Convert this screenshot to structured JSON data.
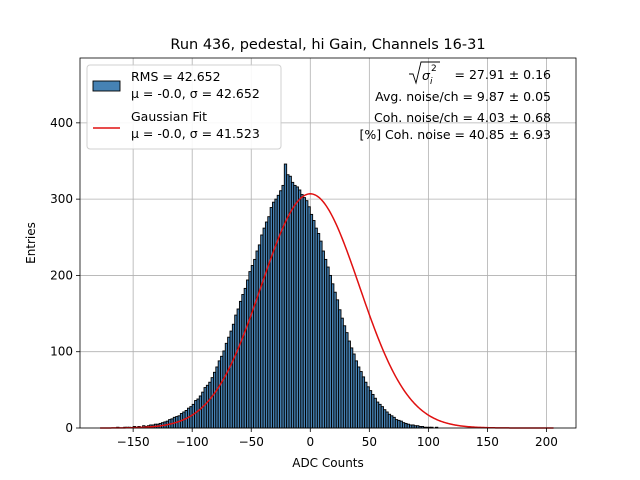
{
  "chart_data": {
    "type": "bar",
    "title": "Run 436, pedestal, hi Gain, Channels 16-31",
    "xlabel": "ADC Counts",
    "ylabel": "Entries",
    "xlim": [
      -195,
      225
    ],
    "ylim": [
      0,
      485
    ],
    "x_ticks": [
      -150,
      -100,
      -50,
      0,
      50,
      100,
      150,
      200
    ],
    "x_tick_labels": [
      "−150",
      "−100",
      "−50",
      "0",
      "50",
      "100",
      "150",
      "200"
    ],
    "y_ticks": [
      0,
      100,
      200,
      300,
      400
    ],
    "y_tick_labels": [
      "0",
      "100",
      "200",
      "300",
      "400"
    ],
    "grid": true,
    "legend_position": "top-left",
    "histogram": {
      "name": "RMS = 42.652",
      "subtitle": "μ = -0.0, σ = 42.652",
      "color": "#4682b4",
      "bin_start": -178,
      "bin_width": 2,
      "counts": [
        0,
        0,
        0,
        0,
        0,
        0,
        0,
        1,
        0,
        0,
        1,
        1,
        1,
        0,
        2,
        1,
        2,
        1,
        3,
        2,
        3,
        4,
        4,
        5,
        5,
        6,
        7,
        8,
        9,
        11,
        12,
        14,
        15,
        16,
        19,
        21,
        23,
        26,
        28,
        31,
        36,
        38,
        42,
        47,
        53,
        56,
        60,
        66,
        73,
        80,
        88,
        94,
        101,
        111,
        119,
        127,
        136,
        148,
        156,
        166,
        175,
        183,
        194,
        205,
        213,
        221,
        232,
        240,
        253,
        262,
        270,
        277,
        289,
        296,
        300,
        305,
        311,
        318,
        346,
        332,
        330,
        322,
        318,
        316,
        312,
        306,
        302,
        298,
        290,
        280,
        272,
        262,
        255,
        245,
        232,
        221,
        211,
        200,
        189,
        178,
        168,
        155,
        144,
        134,
        125,
        114,
        105,
        97,
        88,
        80,
        74,
        67,
        60,
        54,
        49,
        44,
        39,
        34,
        31,
        28,
        24,
        21,
        18,
        16,
        14,
        11,
        10,
        9,
        7,
        6,
        5,
        4,
        4,
        3,
        3,
        2,
        2,
        1,
        1,
        1,
        1,
        0,
        1,
        0,
        0,
        0,
        0,
        0,
        0,
        0,
        0,
        0,
        0,
        0,
        0,
        0,
        0,
        0,
        0,
        0,
        0,
        0,
        0,
        0,
        0,
        0,
        0,
        0,
        0,
        0,
        0,
        0,
        0,
        0,
        0,
        0,
        0,
        0,
        0,
        0,
        0,
        0,
        0,
        0,
        0,
        0,
        0,
        0,
        0,
        0,
        0,
        0,
        0,
        0
      ]
    },
    "fit": {
      "name": "Gaussian Fit",
      "subtitle": "μ = -0.0, σ = 41.523",
      "color": "#e01010",
      "mu": 0.0,
      "sigma": 41.523,
      "amplitude": 307,
      "x_range": [
        -178,
        206
      ]
    },
    "annotations": {
      "sigma_i_sq": "= 27.91 ± 0.16",
      "avg_noise": "Avg. noise/ch = 9.87 ± 0.05",
      "coh_noise": "Coh. noise/ch = 4.03 ± 0.68",
      "coh_pct": "[%] Coh. noise = 40.85 ± 6.93"
    }
  }
}
